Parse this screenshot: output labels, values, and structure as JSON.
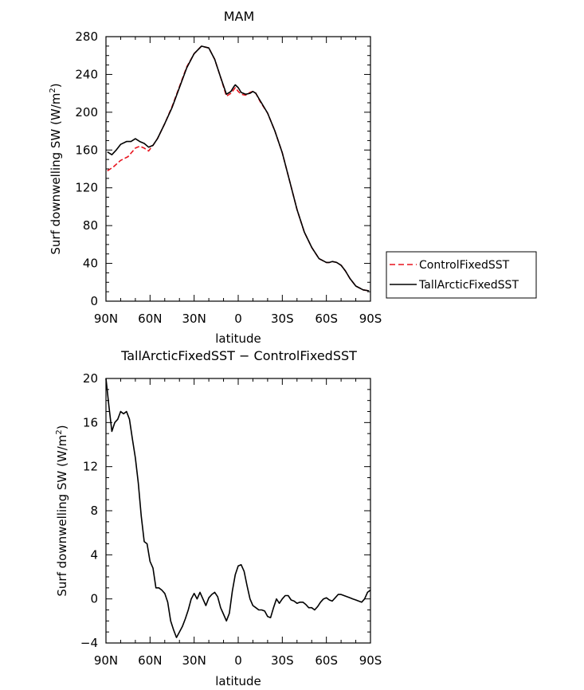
{
  "chart_data": [
    {
      "type": "line",
      "title": "MAM",
      "xlabel": "latitude",
      "ylabel": "Surf downwelling SW (W/m",
      "ylabel_sup": "2",
      "ylabel_end": ")",
      "xlim": [
        90,
        -90
      ],
      "ylim": [
        0,
        280
      ],
      "x_ticks": [
        90,
        60,
        30,
        0,
        -30,
        -60,
        -90
      ],
      "x_tick_labels": [
        "90N",
        "60N",
        "30N",
        "0",
        "30S",
        "60S",
        "90S"
      ],
      "y_ticks": [
        0,
        40,
        80,
        120,
        160,
        200,
        240,
        280
      ],
      "y_tick_labels": [
        "0",
        "40",
        "80",
        "120",
        "160",
        "200",
        "240",
        "280"
      ],
      "legend_position": "right",
      "series": [
        {
          "name": "ControlFixedSST",
          "color": "#e8141e",
          "dash": "dashed",
          "x": [
            89,
            85,
            80,
            75,
            70,
            67,
            64,
            61,
            58,
            55,
            50,
            45,
            40,
            35,
            30,
            25,
            20,
            16,
            12,
            8,
            5,
            3,
            2,
            0,
            -2,
            -5,
            -8,
            -10,
            -12,
            -15,
            -20,
            -25,
            -30,
            -35,
            -40,
            -45,
            -50,
            -55,
            -60,
            -62,
            -64,
            -67,
            -70,
            -73,
            -76,
            -80,
            -85,
            -89
          ],
          "y": [
            138,
            142,
            149,
            153,
            162,
            164,
            162,
            159,
            165,
            172,
            188,
            206,
            227,
            248,
            262,
            270,
            268,
            256,
            237,
            217,
            220,
            224,
            226,
            222,
            219,
            218,
            221,
            222,
            220,
            211,
            199,
            180,
            157,
            127,
            97,
            73,
            57,
            45,
            41,
            41,
            42,
            41,
            38,
            32,
            24,
            16,
            12,
            11
          ]
        },
        {
          "name": "TallArcticFixedSST",
          "color": "#000000",
          "dash": "solid",
          "x": [
            89,
            86,
            83,
            80,
            76,
            73,
            70,
            67,
            64,
            61,
            58,
            55,
            50,
            45,
            40,
            35,
            30,
            25,
            20,
            16,
            12,
            8,
            5,
            3,
            2,
            0,
            -2,
            -5,
            -8,
            -10,
            -12,
            -15,
            -20,
            -25,
            -30,
            -35,
            -40,
            -45,
            -50,
            -55,
            -60,
            -62,
            -64,
            -67,
            -70,
            -73,
            -76,
            -80,
            -85,
            -89
          ],
          "y": [
            158,
            155,
            160,
            166,
            169,
            169,
            172,
            169,
            167,
            163,
            165,
            172,
            188,
            205,
            226,
            247,
            262,
            270,
            268,
            256,
            237,
            219,
            222,
            227,
            229,
            226,
            221,
            219,
            220,
            222,
            220,
            212,
            199,
            180,
            157,
            127,
            97,
            73,
            57,
            45,
            41,
            41,
            42,
            41,
            38,
            32,
            24,
            16,
            12,
            11
          ]
        }
      ]
    },
    {
      "type": "line",
      "title": "TallArcticFixedSST − ControlFixedSST",
      "xlabel": "latitude",
      "ylabel": "Surf downwelling SW (W/m",
      "ylabel_sup": "2",
      "ylabel_end": ")",
      "xlim": [
        90,
        -90
      ],
      "ylim": [
        -4,
        20
      ],
      "x_ticks": [
        90,
        60,
        30,
        0,
        -30,
        -60,
        -90
      ],
      "x_tick_labels": [
        "90N",
        "60N",
        "30N",
        "0",
        "30S",
        "60S",
        "90S"
      ],
      "y_ticks": [
        -4,
        0,
        4,
        8,
        12,
        16,
        20
      ],
      "y_tick_labels": [
        "−4",
        "0",
        "4",
        "8",
        "12",
        "16",
        "20"
      ],
      "series": [
        {
          "color": "#000000",
          "dash": "solid",
          "x": [
            90,
            88,
            86,
            84,
            82,
            80,
            78,
            76,
            74,
            72,
            70,
            68,
            66,
            64,
            62,
            60,
            58,
            56,
            54,
            52,
            50,
            48,
            46,
            44,
            42,
            40,
            38,
            36,
            34,
            32,
            30,
            28,
            26,
            24,
            22,
            20,
            18,
            16,
            14,
            12,
            10,
            8,
            6,
            4,
            2,
            0,
            -2,
            -4,
            -6,
            -8,
            -10,
            -12,
            -14,
            -16,
            -18,
            -20,
            -22,
            -24,
            -26,
            -28,
            -30,
            -32,
            -34,
            -36,
            -38,
            -40,
            -42,
            -44,
            -46,
            -48,
            -50,
            -52,
            -54,
            -56,
            -58,
            -60,
            -62,
            -64,
            -66,
            -68,
            -70,
            -72,
            -74,
            -76,
            -78,
            -80,
            -82,
            -84,
            -86,
            -88,
            -90
          ],
          "y": [
            20.0,
            17.5,
            15.2,
            16.0,
            16.3,
            17.0,
            16.8,
            17.0,
            16.3,
            14.5,
            12.8,
            10.5,
            7.5,
            5.2,
            5.0,
            3.4,
            2.8,
            1.0,
            1.0,
            0.8,
            0.5,
            -0.3,
            -2.0,
            -2.8,
            -3.5,
            -3.0,
            -2.5,
            -1.8,
            -1.0,
            0.0,
            0.5,
            0.0,
            0.6,
            0.0,
            -0.6,
            0.1,
            0.4,
            0.6,
            0.2,
            -0.8,
            -1.4,
            -2.0,
            -1.3,
            0.7,
            2.2,
            3.0,
            3.1,
            2.5,
            1.2,
            0.0,
            -0.6,
            -0.8,
            -1.0,
            -1.0,
            -1.1,
            -1.6,
            -1.7,
            -0.8,
            0.0,
            -0.4,
            0.0,
            0.3,
            0.3,
            -0.1,
            -0.2,
            -0.4,
            -0.3,
            -0.3,
            -0.5,
            -0.8,
            -0.8,
            -1.0,
            -0.7,
            -0.3,
            0.0,
            0.1,
            -0.1,
            -0.2,
            0.1,
            0.4,
            0.4,
            0.3,
            0.2,
            0.1,
            0.0,
            -0.1,
            -0.2,
            -0.3,
            0.0,
            0.6,
            0.8
          ]
        }
      ]
    }
  ]
}
